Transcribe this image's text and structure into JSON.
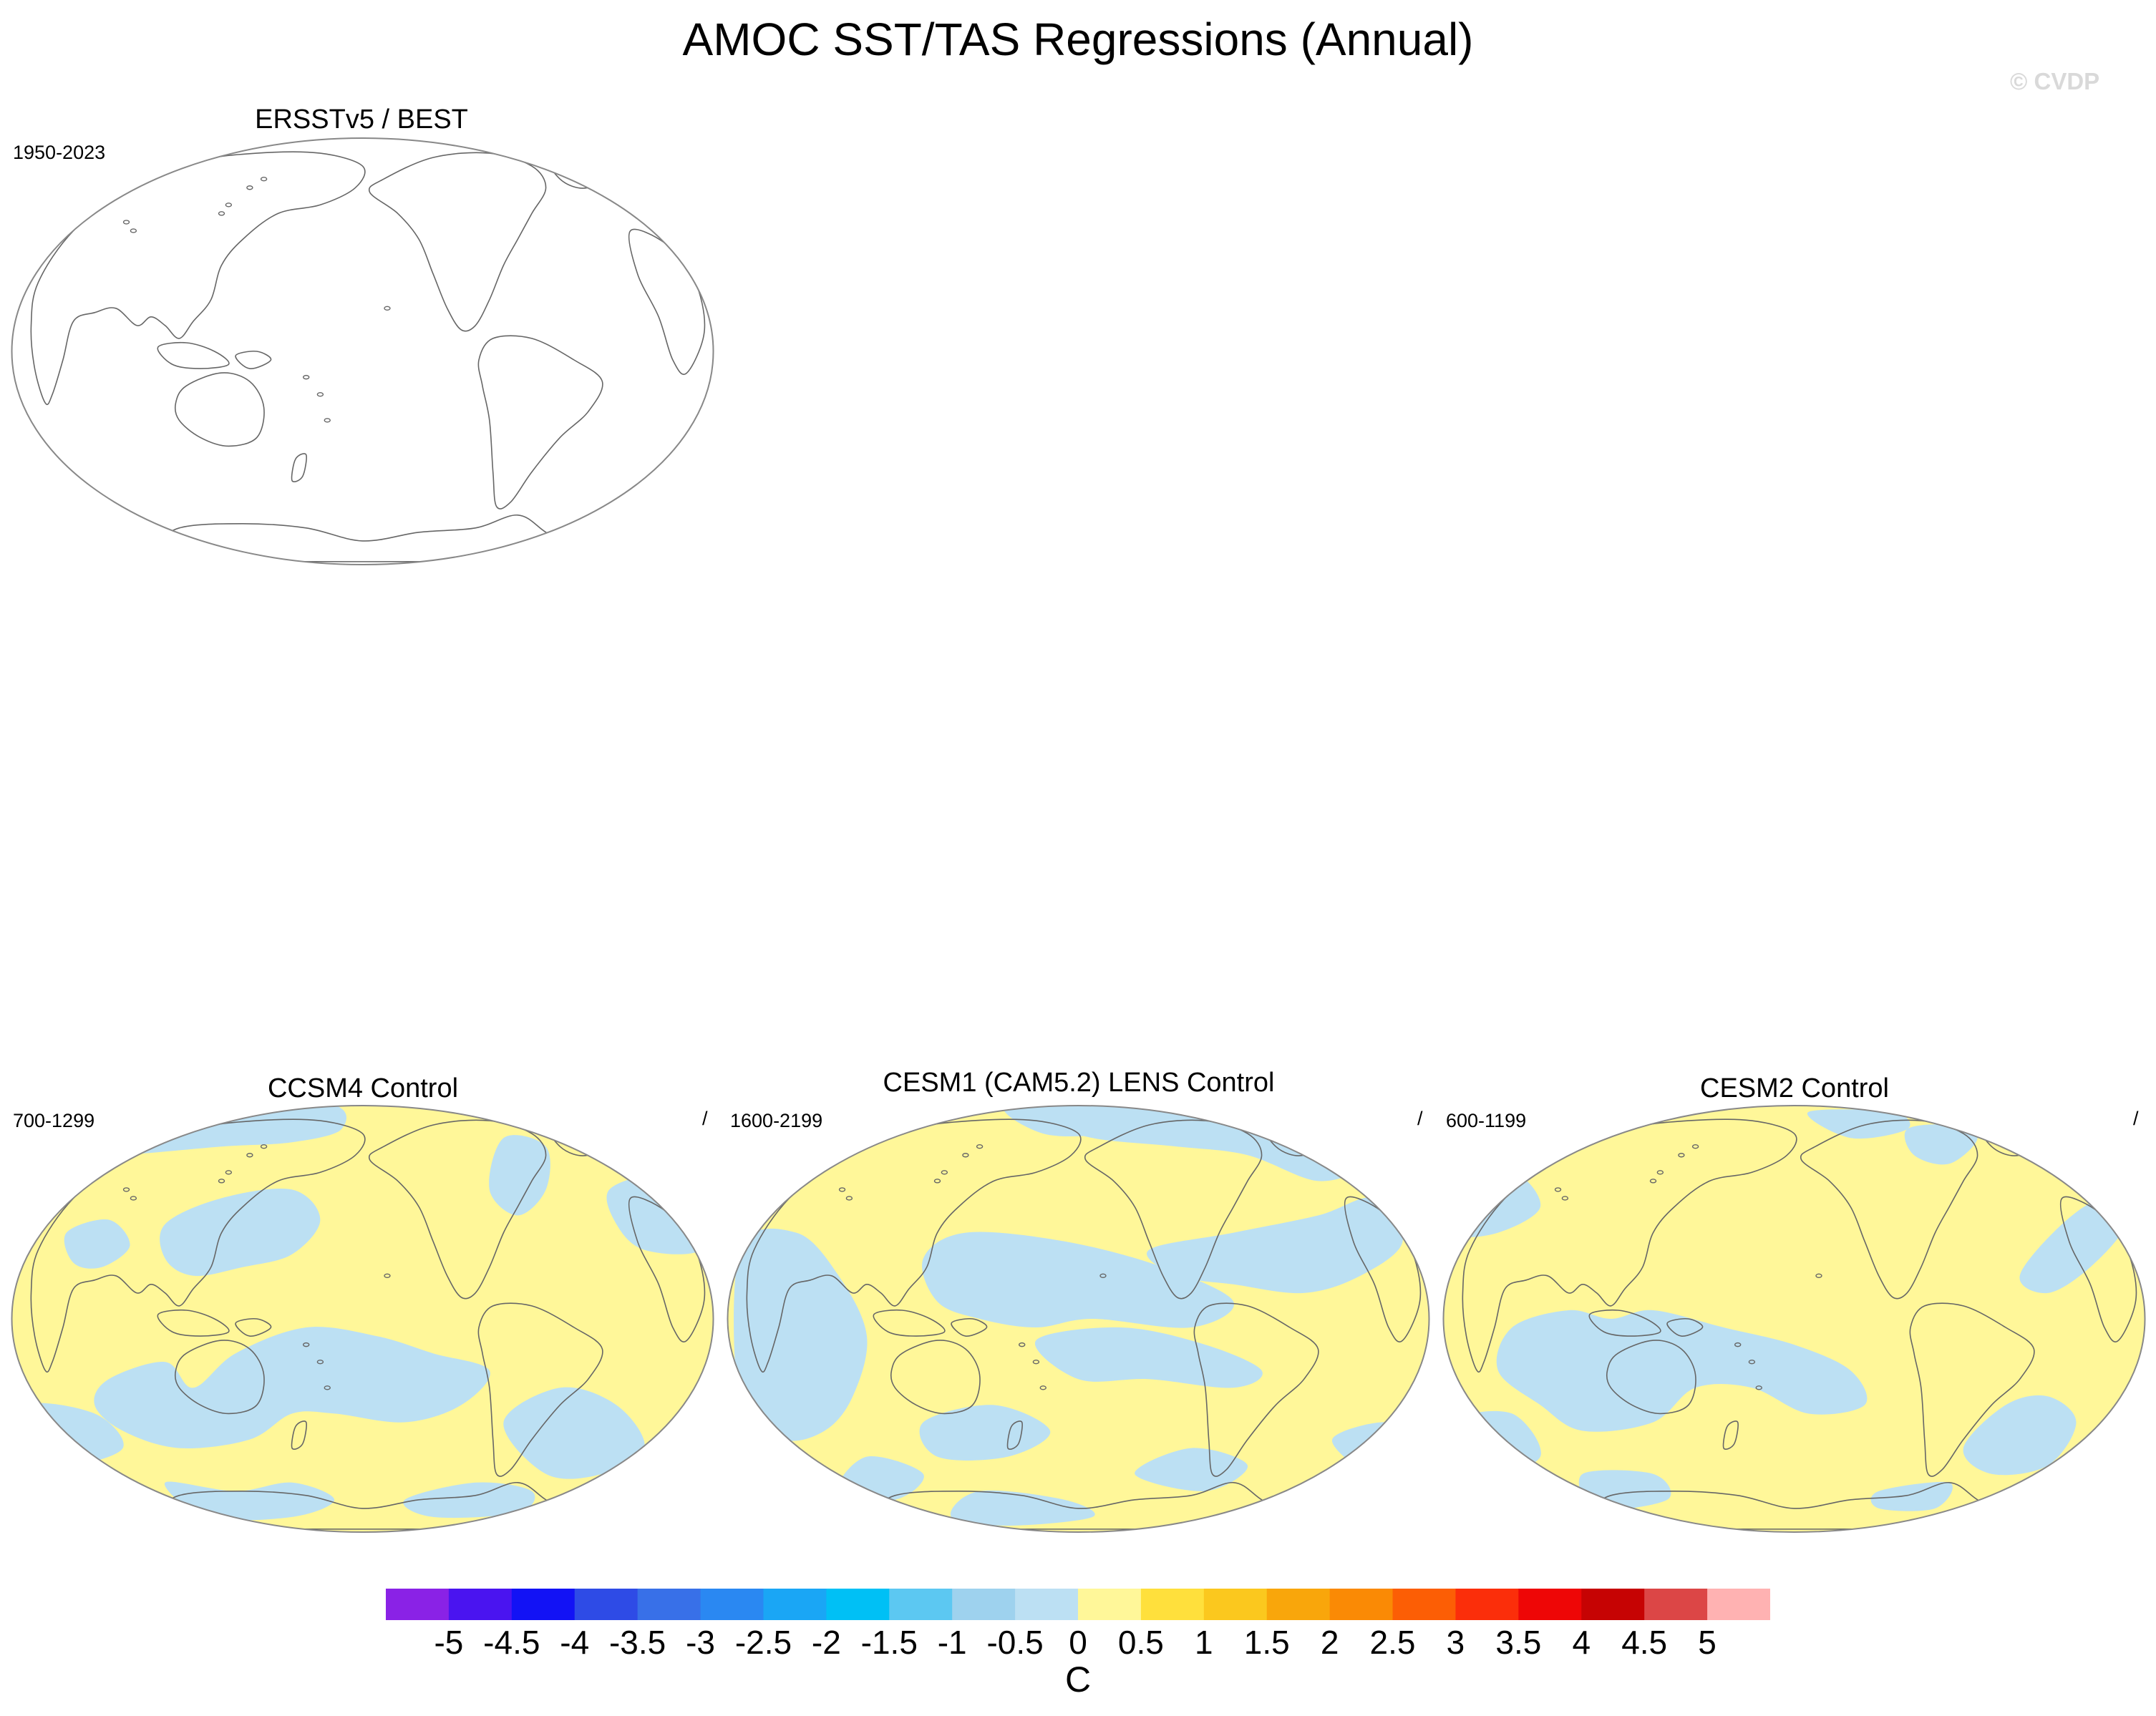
{
  "title": "AMOC SST/TAS Regressions (Annual)",
  "watermark": "© CVDP",
  "colors": {
    "positive_fill": "#FFF799",
    "negative_fill": "#BCE0F3",
    "coastline": "#666666",
    "map_border": "#888888"
  },
  "panels": [
    {
      "title": "ERSSTv5 / BEST",
      "years": "1950-2023",
      "right_label": "",
      "filled": false
    },
    {
      "title": "CCSM4 Control",
      "years": "700-1299",
      "right_label": "/",
      "filled": true
    },
    {
      "title": "CESM1 (CAM5.2) LENS Control",
      "years": "1600-2199",
      "right_label": "/",
      "filled": true
    },
    {
      "title": "CESM2 Control",
      "years": "600-1199",
      "right_label": "/",
      "filled": true
    }
  ],
  "colorbar": {
    "units": "C",
    "labels": [
      "-5",
      "-4.5",
      "-4",
      "-3.5",
      "-3",
      "-2.5",
      "-2",
      "-1.5",
      "-1",
      "-0.5",
      "0",
      "0.5",
      "1",
      "1.5",
      "2",
      "2.5",
      "3",
      "3.5",
      "4",
      "4.5",
      "5"
    ],
    "colors": [
      "#8A22E6",
      "#4A14F0",
      "#1212F5",
      "#2E4BE6",
      "#3870E8",
      "#2A88F2",
      "#1AA6F5",
      "#00C0F5",
      "#5CC8F2",
      "#9ED2EE",
      "#BCE0F3",
      "#FFF799",
      "#FFE03C",
      "#FBC81E",
      "#F9A60B",
      "#FA8A05",
      "#FC5E05",
      "#FB2E0A",
      "#EE0606",
      "#C60303",
      "#DC4646",
      "#FFB2B2"
    ]
  }
}
